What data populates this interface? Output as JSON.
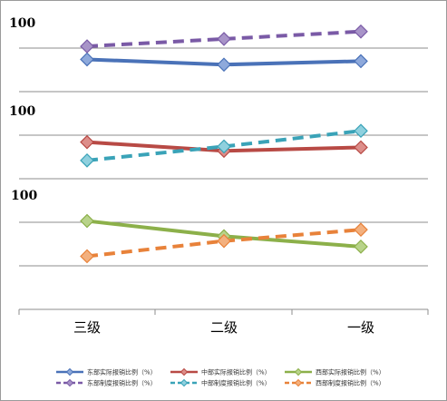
{
  "chart_data": {
    "type": "line",
    "categories": [
      "三级",
      "二级",
      "一级"
    ],
    "panel_labels": [
      "100",
      "100",
      "100"
    ],
    "grid": true,
    "legend_position": "bottom",
    "series": [
      {
        "name": "东部实际报销比例（%）",
        "panel": 0,
        "dashed": false,
        "color": "#4a72b8",
        "marker_fill": "#8ea9db",
        "values": [
          0.74,
          0.62,
          0.7
        ]
      },
      {
        "name": "东部制度报销比例（%）",
        "panel": 0,
        "dashed": true,
        "color": "#7a5aa6",
        "marker_fill": "#a894c8",
        "values": [
          1.04,
          1.21,
          1.38
        ]
      },
      {
        "name": "中部实际报销比例（%）",
        "panel": 1,
        "dashed": false,
        "color": "#b84a45",
        "marker_fill": "#dd8e8a",
        "values": [
          0.84,
          0.64,
          0.72
        ]
      },
      {
        "name": "中部制度报销比例（%）",
        "panel": 1,
        "dashed": true,
        "color": "#3aa3b8",
        "marker_fill": "#8fd0de",
        "values": [
          0.42,
          0.74,
          1.1
        ]
      },
      {
        "name": "西部实际报销比例（%）",
        "panel": 2,
        "dashed": false,
        "color": "#8cb04a",
        "marker_fill": "#b8d38a",
        "values": [
          1.03,
          0.68,
          0.44
        ]
      },
      {
        "name": "西部制度报销比例（%）",
        "panel": 2,
        "dashed": true,
        "color": "#e8823a",
        "marker_fill": "#f3b07e",
        "values": [
          0.22,
          0.57,
          0.83
        ]
      }
    ]
  }
}
